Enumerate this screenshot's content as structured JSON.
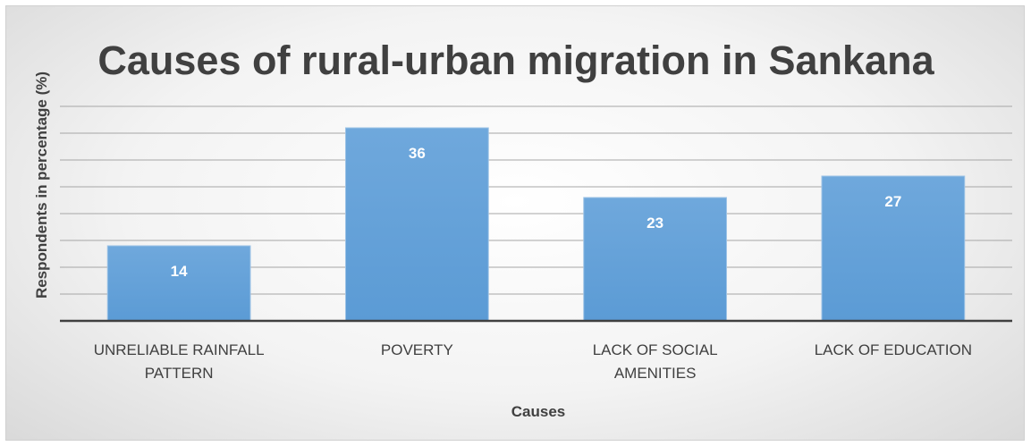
{
  "chart_data": {
    "type": "bar",
    "title": "Causes of rural-urban migration in Sankana",
    "xlabel": "Causes",
    "ylabel": "Respondents in  percentage (%)",
    "categories": [
      [
        "UNRELIABLE RAINFALL",
        "PATTERN"
      ],
      [
        "POVERTY"
      ],
      [
        "LACK OF SOCIAL",
        "AMENITIES"
      ],
      [
        "LACK OF EDUCATION"
      ]
    ],
    "values": [
      14,
      36,
      23,
      27
    ],
    "ylim": [
      0,
      40
    ],
    "y_gridline_step": 5,
    "grid": true,
    "data_labels": true,
    "colors": {
      "bar": "#5b9bd5",
      "bar_gradient_top": "#6fa8dc",
      "bar_border": "#9dc3e6",
      "gridline": "#a6a6a6",
      "axis": "#404040",
      "title": "#404040",
      "label_text": "#404040",
      "data_label": "#ffffff"
    }
  }
}
